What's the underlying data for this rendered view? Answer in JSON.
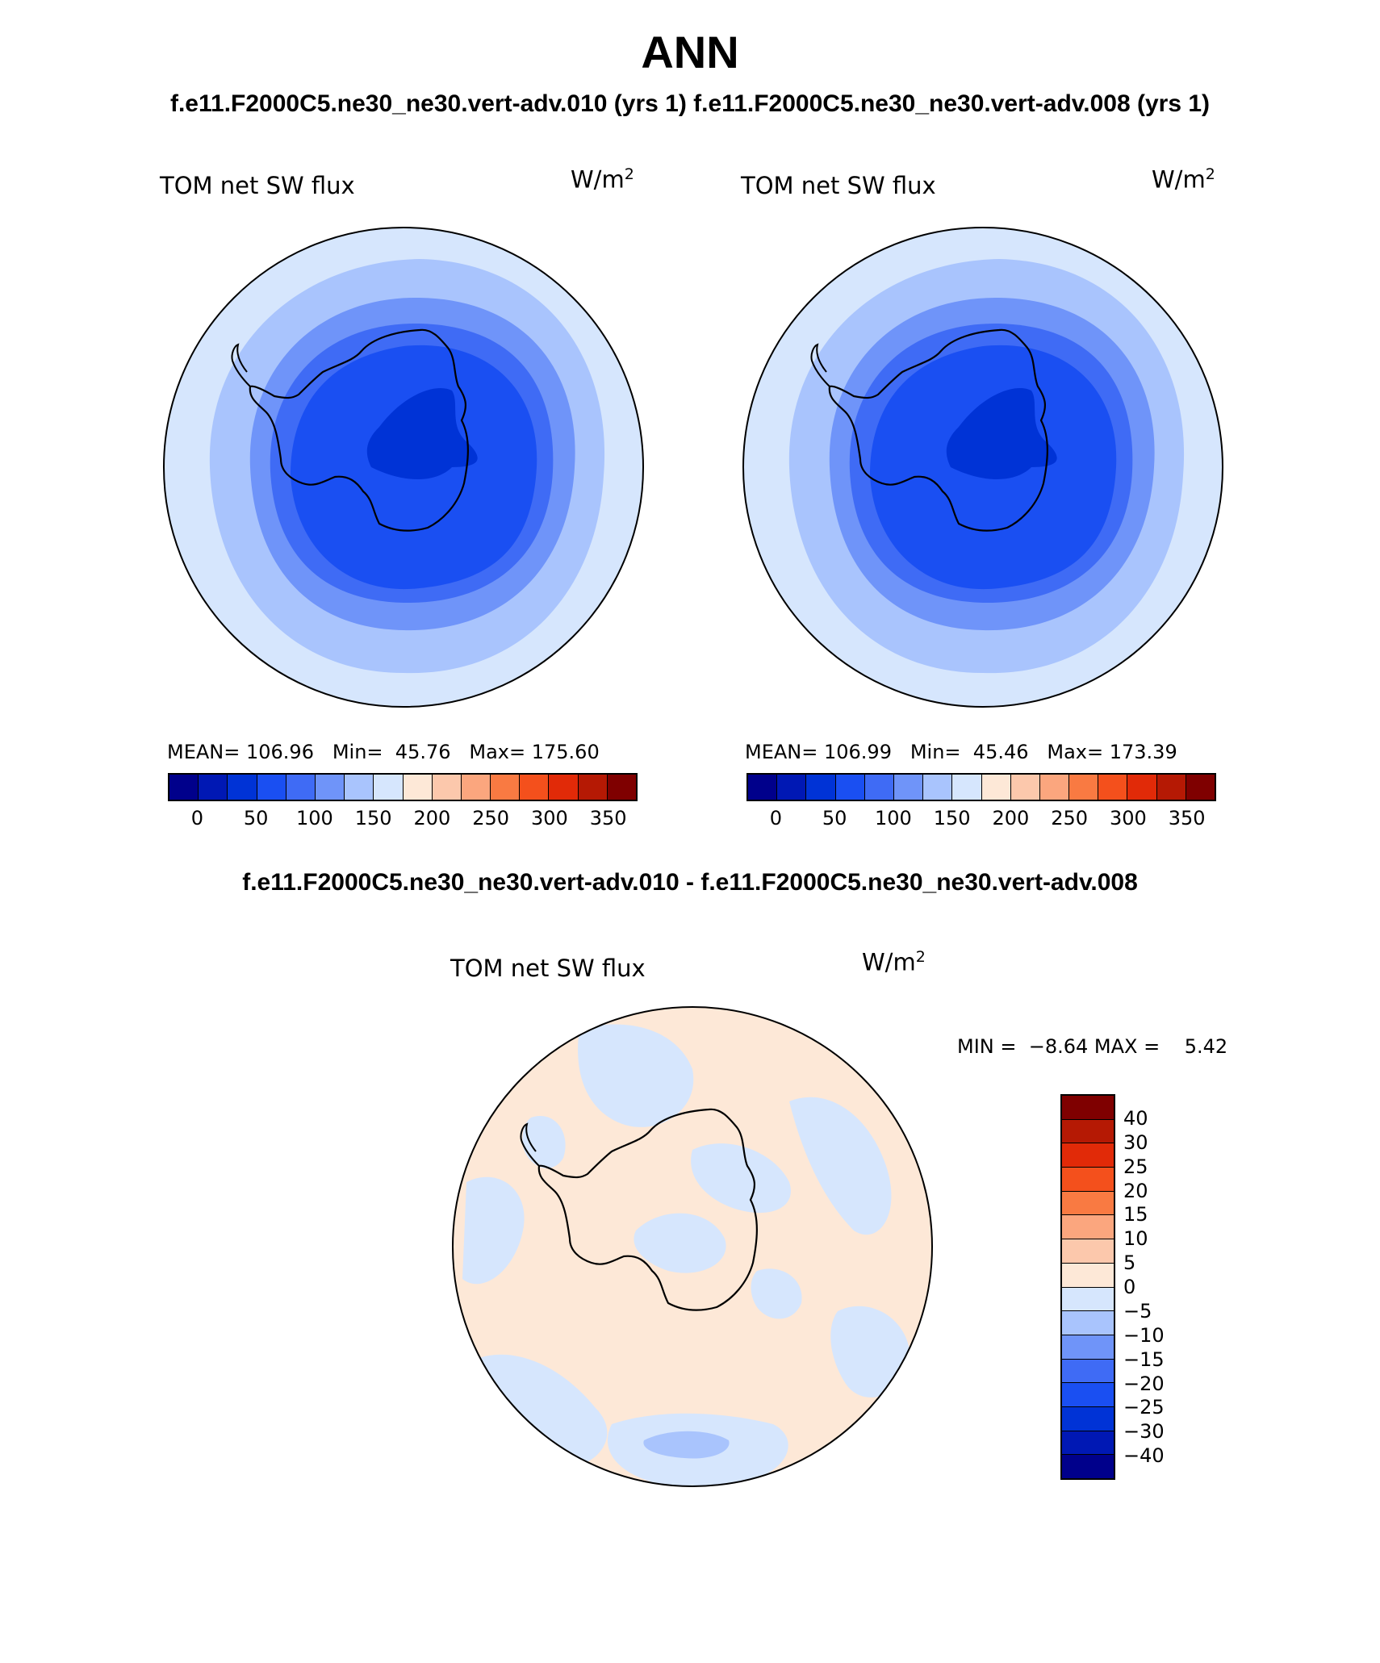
{
  "figure": {
    "title": "ANN",
    "case_titles": "f.e11.F2000C5.ne30_ne30.vert-adv.010 (yrs 1) f.e11.F2000C5.ne30_ne30.vert-adv.008 (yrs 1)",
    "diff_title": "f.e11.F2000C5.ne30_ne30.vert-adv.010 - f.e11.F2000C5.ne30_ne30.vert-adv.008"
  },
  "panels": [
    {
      "variable": "TOM net SW flux",
      "units_base": "W/m",
      "units_exp": "2",
      "stats": "MEAN= 106.96   Min=  45.76   Max= 175.60",
      "ticks": [
        "0",
        "50",
        "100",
        "150",
        "200",
        "250",
        "300",
        "350"
      ]
    },
    {
      "variable": "TOM net SW flux",
      "units_base": "W/m",
      "units_exp": "2",
      "stats": "MEAN= 106.99   Min=  45.46   Max= 173.39",
      "ticks": [
        "0",
        "50",
        "100",
        "150",
        "200",
        "250",
        "300",
        "350"
      ]
    }
  ],
  "diff_panel": {
    "variable": "TOM net SW flux",
    "units_base": "W/m",
    "units_exp": "2",
    "stats": "MIN =  −8.64 MAX =    5.42",
    "ticks": [
      "40",
      "30",
      "25",
      "20",
      "15",
      "10",
      "5",
      "0",
      "−5",
      "−10",
      "−15",
      "−20",
      "−25",
      "−30",
      "−40"
    ]
  },
  "colors": {
    "abs_scale": [
      "#00008b",
      "#0018b4",
      "#0033d6",
      "#1a4ff2",
      "#3f6bf5",
      "#6f94f9",
      "#a9c4fd",
      "#d6e6fd",
      "#fde8d7",
      "#fcc8ac",
      "#fba67e",
      "#f97a42",
      "#f4501c",
      "#e12a08",
      "#b51904",
      "#7f0000"
    ],
    "diff_scale": [
      "#7f0000",
      "#b51904",
      "#e12a08",
      "#f4501c",
      "#f97a42",
      "#fba67e",
      "#fcc8ac",
      "#fde8d7",
      "#d6e6fd",
      "#a9c4fd",
      "#6f94f9",
      "#3f6bf5",
      "#1a4ff2",
      "#0033d6",
      "#0018b4",
      "#00008b"
    ],
    "land_outline": "#000000"
  }
}
